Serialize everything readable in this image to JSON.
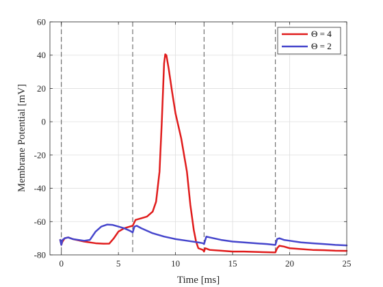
{
  "chart_data": {
    "type": "line",
    "title": "",
    "xlabel": "Time [ms]",
    "ylabel": "Membrane Potential [mV]",
    "xlim": [
      -1,
      25
    ],
    "ylim": [
      -80,
      60
    ],
    "xticks": [
      0,
      5,
      10,
      15,
      20,
      25
    ],
    "yticks": [
      -80,
      -60,
      -40,
      -20,
      0,
      20,
      40,
      60
    ],
    "grid": true,
    "legend_position": "top-right",
    "vlines": [
      0,
      6.25,
      12.5,
      18.75
    ],
    "series": [
      {
        "name": "Θ = 4",
        "color": "#e01b1b",
        "x": [
          -0.1,
          0,
          0.1,
          0.3,
          0.6,
          1,
          2,
          3,
          3.7,
          4.2,
          4.6,
          5,
          5.5,
          6,
          6.25,
          6.5,
          7,
          7.5,
          8,
          8.3,
          8.6,
          8.8,
          9.0,
          9.1,
          9.2,
          9.4,
          9.7,
          10,
          10.5,
          11,
          11.3,
          11.6,
          11.8,
          12,
          12.4,
          12.5,
          12.6,
          12.8,
          13,
          14,
          15,
          16,
          17,
          18.6,
          18.75,
          18.9,
          19.1,
          19.5,
          20,
          21,
          22,
          23,
          24,
          25
        ],
        "y": [
          -71,
          -74,
          -72,
          -70,
          -69.5,
          -70.5,
          -72,
          -73,
          -73.3,
          -73.2,
          -70,
          -66,
          -64,
          -63,
          -62.5,
          -59,
          -58,
          -57,
          -54,
          -48,
          -30,
          0,
          35,
          40.5,
          40,
          32,
          18,
          5,
          -10,
          -30,
          -50,
          -65,
          -72,
          -76,
          -77,
          -78,
          -76,
          -76.5,
          -77,
          -77.5,
          -78,
          -78,
          -78.2,
          -78.5,
          -78.5,
          -76,
          -74.5,
          -75,
          -76,
          -76.5,
          -77,
          -77.2,
          -77.5,
          -77.6
        ]
      },
      {
        "name": "Θ = 2",
        "color": "#4545cc",
        "x": [
          -0.1,
          0,
          0.1,
          0.3,
          0.6,
          1,
          1.5,
          2,
          2.5,
          3,
          3.5,
          4,
          4.5,
          5,
          5.5,
          6,
          6.25,
          6.4,
          6.6,
          7,
          8,
          9,
          10,
          11,
          12,
          12.4,
          12.5,
          12.7,
          13,
          14,
          15,
          16,
          17,
          18,
          18.7,
          18.75,
          18.9,
          19.1,
          19.5,
          20,
          21,
          22,
          23,
          24,
          25
        ],
        "y": [
          -71,
          -74,
          -71,
          -70,
          -69.5,
          -70.5,
          -71,
          -71.5,
          -71,
          -66,
          -63,
          -61.8,
          -62,
          -63,
          -64,
          -65.5,
          -66.5,
          -63,
          -62.5,
          -64,
          -67,
          -69,
          -70.5,
          -71.5,
          -72.5,
          -73,
          -73.5,
          -69,
          -69.5,
          -71,
          -72,
          -72.5,
          -73,
          -73.5,
          -74,
          -74,
          -70.5,
          -70,
          -71,
          -71.5,
          -72.5,
          -73,
          -73.5,
          -74,
          -74.3
        ]
      }
    ]
  }
}
